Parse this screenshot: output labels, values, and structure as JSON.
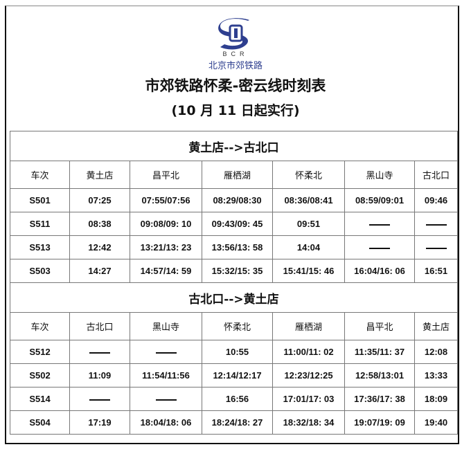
{
  "header": {
    "logo_letters": "BCR",
    "organization": "北京市郊铁路",
    "title": "市郊铁路怀柔-密云线时刻表",
    "subtitle": "(10 月 11 日起实行)"
  },
  "colors": {
    "logo_blue": "#2e3f8f"
  },
  "sections": [
    {
      "title": "黄土店-->古北口",
      "columns": [
        "车次",
        "黄土店",
        "昌平北",
        "雁栖湖",
        "怀柔北",
        "黑山寺",
        "古北口"
      ],
      "rows": [
        [
          "S501",
          "07:25",
          "07:55/07:56",
          "08:29/08:30",
          "08:36/08:41",
          "08:59/09:01",
          "09:46"
        ],
        [
          "S511",
          "08:38",
          "09:08/09: 10",
          "09:43/09: 45",
          "09:51",
          "——",
          "——"
        ],
        [
          "S513",
          "12:42",
          "13:21/13: 23",
          "13:56/13: 58",
          "14:04",
          "——",
          "——"
        ],
        [
          "S503",
          "14:27",
          "14:57/14: 59",
          "15:32/15: 35",
          "15:41/15: 46",
          "16:04/16: 06",
          "16:51"
        ]
      ]
    },
    {
      "title": "古北口-->黄土店",
      "columns": [
        "车次",
        "古北口",
        "黑山寺",
        "怀柔北",
        "雁栖湖",
        "昌平北",
        "黄土店"
      ],
      "rows": [
        [
          "S512",
          "——",
          "——",
          "10:55",
          "11:00/11: 02",
          "11:35/11: 37",
          "12:08"
        ],
        [
          "S502",
          "11:09",
          "11:54/11:56",
          "12:14/12:17",
          "12:23/12:25",
          "12:58/13:01",
          "13:33"
        ],
        [
          "S514",
          "——",
          "——",
          "16:56",
          "17:01/17: 03",
          "17:36/17: 38",
          "18:09"
        ],
        [
          "S504",
          "17:19",
          "18:04/18: 06",
          "18:24/18: 27",
          "18:32/18: 34",
          "19:07/19: 09",
          "19:40"
        ]
      ]
    }
  ]
}
